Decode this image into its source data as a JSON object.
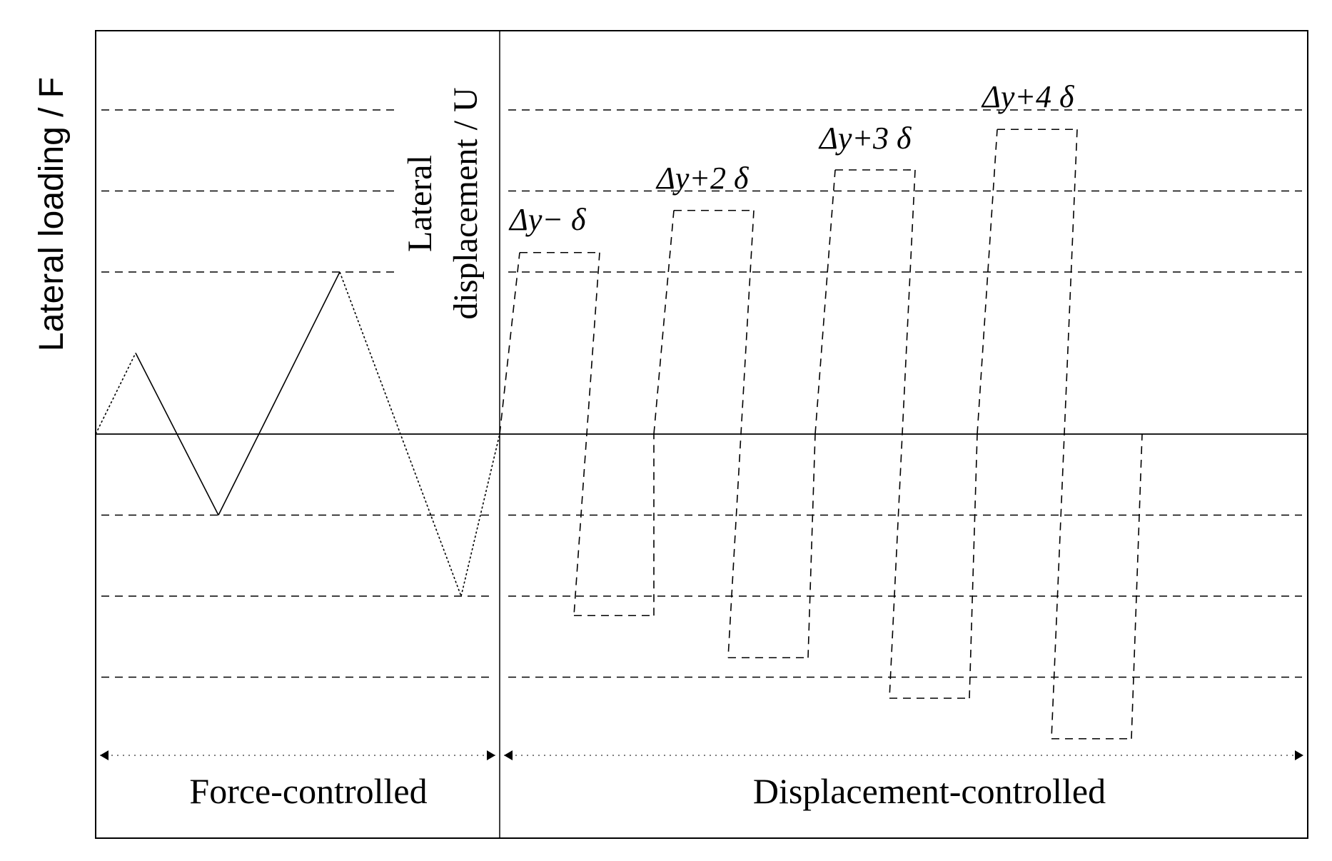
{
  "axis_labels": {
    "force": "Lateral loading / F",
    "displacement_line1": "Lateral",
    "displacement_line2": "displacement / U"
  },
  "phases": {
    "force": "Force-controlled",
    "displacement": "Displacement-controlled"
  },
  "cycle_labels": [
    "Δy− δ",
    "Δy+2 δ",
    "Δy+3 δ",
    "Δy+4 δ"
  ],
  "loading_protocol": {
    "force_controlled": {
      "peaks": [
        0.5,
        -0.5,
        1.0,
        -1.0
      ]
    },
    "displacement_controlled": {
      "cycles": [
        {
          "label": "Δy− δ",
          "amplitude": 1.12
        },
        {
          "label": "Δy+2 δ",
          "amplitude": 1.38
        },
        {
          "label": "Δy+3 δ",
          "amplitude": 1.63
        },
        {
          "label": "Δy+4 δ",
          "amplitude": 1.88
        }
      ]
    }
  },
  "reference_levels": [
    1.0,
    1.5,
    2.0,
    -0.5,
    -1.0,
    -1.5
  ],
  "colors": {
    "line": "#000000",
    "background": "#ffffff"
  }
}
